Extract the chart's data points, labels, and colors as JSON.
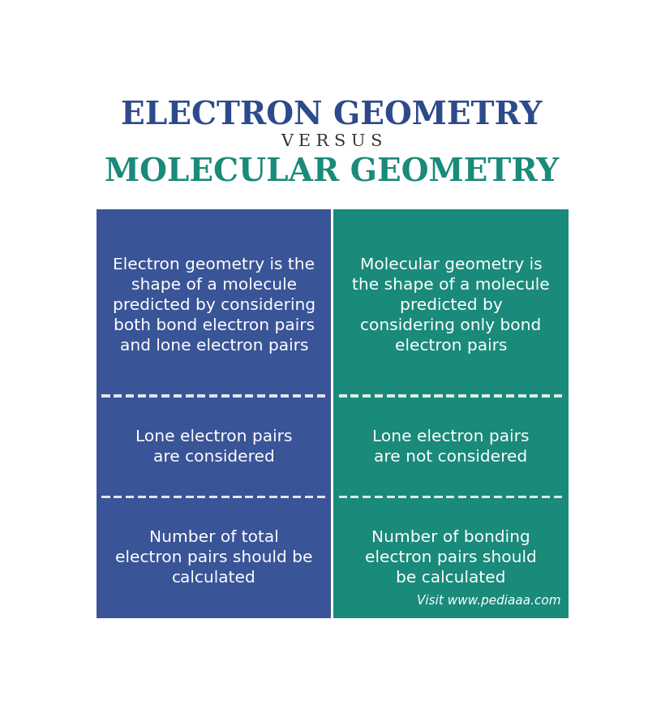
{
  "title_line1": "ELECTRON GEOMETRY",
  "title_line2": "V E R S U S",
  "title_line3": "MOLECULAR GEOMETRY",
  "title_color1": "#2d4a8a",
  "title_color2": "#333333",
  "title_color3": "#1a8a7a",
  "left_color": "#3a5498",
  "right_color": "#1a8a7a",
  "text_color": "#ffffff",
  "background_color": "#ffffff",
  "left_cells": [
    "Electron geometry is the\nshape of a molecule\npredicted by considering\nboth bond electron pairs\nand lone electron pairs",
    "Lone electron pairs\nare considered",
    "Number of total\nelectron pairs should be\ncalculated"
  ],
  "right_cells": [
    "Molecular geometry is\nthe shape of a molecule\npredicted by\nconsidering only bond\nelectron pairs",
    "Lone electron pairs\nare not considered",
    "Number of bonding\nelectron pairs should\nbe calculated"
  ],
  "watermark": "Visit www.pediaaa.com",
  "row_proportions": [
    0.45,
    0.25,
    0.3
  ]
}
